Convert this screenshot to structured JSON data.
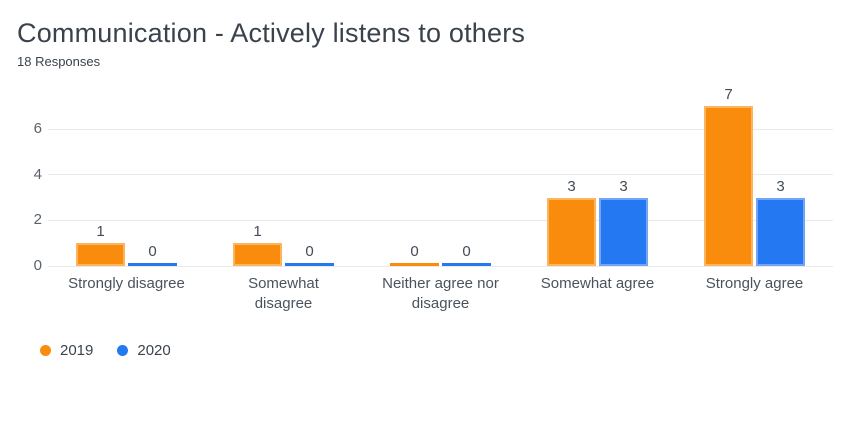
{
  "header": {
    "title": "Communication - Actively listens to others",
    "subtitle": "18 Responses"
  },
  "chart_data": {
    "type": "bar",
    "title": "Communication - Actively listens to others",
    "subtitle": "18 Responses",
    "categories": [
      "Strongly disagree",
      "Somewhat\ndisagree",
      "Neither agree nor\ndisagree",
      "Somewhat agree",
      "Strongly agree"
    ],
    "series": [
      {
        "name": "2019",
        "color": "#FA8C0D",
        "border_color": "#FCB55E",
        "values": [
          1,
          1,
          0,
          3,
          7
        ]
      },
      {
        "name": "2020",
        "color": "#2478F2",
        "border_color": "#74A4F6",
        "values": [
          0,
          0,
          0,
          3,
          3
        ]
      }
    ],
    "ylim": [
      0,
      7
    ],
    "yticks": [
      0,
      2,
      4,
      6
    ],
    "grid": true,
    "data_labels": true,
    "legend_position": "bottom-left",
    "gridline_color": "#E9E9E9"
  }
}
